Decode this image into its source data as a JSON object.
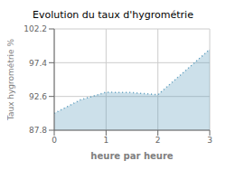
{
  "chart_data": {
    "type": "area",
    "title": "Evolution du taux d'hygrométrie",
    "xlabel": "heure par heure",
    "ylabel": "Taux hygrométrie %",
    "x": [
      0,
      0.5,
      1.0,
      1.5,
      2.0,
      3.0
    ],
    "values": [
      90.2,
      92.1,
      93.2,
      93.15,
      92.85,
      99.3
    ],
    "xlim": [
      0,
      3
    ],
    "ylim": [
      87.8,
      102.2
    ],
    "xticks": [
      0,
      1,
      2,
      3
    ],
    "yticks": [
      87.8,
      92.6,
      97.4,
      102.2
    ],
    "color": "#5599bb",
    "line_style": "dotted",
    "grid": true
  }
}
